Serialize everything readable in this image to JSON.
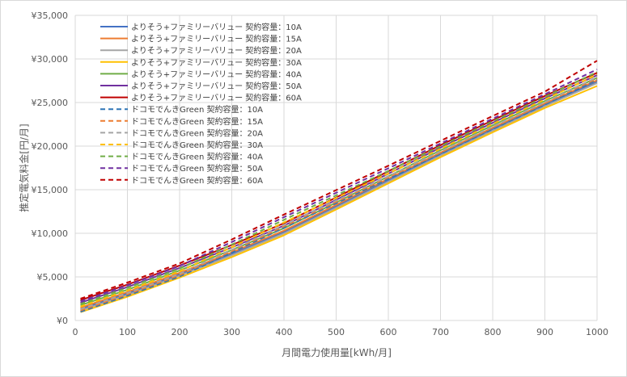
{
  "chart_data": {
    "type": "line",
    "title": "",
    "xlabel": "月間電力使用量[kWh/月]",
    "ylabel": "推定電気料金[円/月]",
    "xlim": [
      0,
      1000
    ],
    "ylim": [
      0,
      35000
    ],
    "x_ticks": [
      "0",
      "100",
      "200",
      "300",
      "400",
      "500",
      "600",
      "700",
      "800",
      "900",
      "1000"
    ],
    "y_ticks": [
      "¥0",
      "¥5,000",
      "¥10,000",
      "¥15,000",
      "¥20,000",
      "¥25,000",
      "¥30,000",
      "¥35,000"
    ],
    "grid": true,
    "legend_position": "top-left",
    "x": [
      10,
      100,
      200,
      300,
      400,
      500,
      600,
      700,
      800,
      900,
      1000
    ],
    "series": [
      {
        "name": "よりそう+ファミリーバリュー 契約容量：10A",
        "color": "#4472c4",
        "dash": false,
        "values": [
          1320,
          3100,
          5300,
          7650,
          10150,
          13100,
          16100,
          19100,
          21950,
          24750,
          27400
        ]
      },
      {
        "name": "よりそう+ファミリーバリュー 契約容量：15A",
        "color": "#ed7d31",
        "dash": false,
        "values": [
          1480,
          3260,
          5460,
          7810,
          10310,
          13260,
          16260,
          19260,
          22110,
          24910,
          27560
        ]
      },
      {
        "name": "よりそう+ファミリーバリュー 契約容量：20A",
        "color": "#a5a5a5",
        "dash": false,
        "values": [
          1150,
          2930,
          5130,
          7480,
          9980,
          12930,
          15930,
          18930,
          21780,
          24580,
          27230
        ]
      },
      {
        "name": "よりそう+ファミリーバリュー 契約容量：30A",
        "color": "#ffc000",
        "dash": false,
        "values": [
          950,
          2730,
          4930,
          7280,
          9780,
          12730,
          15730,
          18730,
          21580,
          24380,
          26900
        ]
      },
      {
        "name": "よりそう+ファミリーバリュー 契約容量：40A",
        "color": "#70ad47",
        "dash": false,
        "values": [
          1750,
          3530,
          5730,
          8080,
          10580,
          13530,
          16530,
          19530,
          22380,
          25180,
          27830
        ]
      },
      {
        "name": "よりそう+ファミリーバリュー 契約容量：50A",
        "color": "#7030a0",
        "dash": false,
        "values": [
          2050,
          3830,
          6030,
          8380,
          10880,
          13830,
          16830,
          19830,
          22680,
          25480,
          28130
        ]
      },
      {
        "name": "よりそう+ファミリーバリュー 契約容量：60A",
        "color": "#c00000",
        "dash": false,
        "values": [
          2330,
          4110,
          6310,
          8660,
          11160,
          14110,
          17110,
          20110,
          22960,
          25760,
          28410
        ]
      },
      {
        "name": "ドコモでんきGreen 契約容量：10A",
        "color": "#2e75b6",
        "dash": true,
        "values": [
          1000,
          2850,
          5050,
          7800,
          10650,
          13450,
          16250,
          19100,
          21950,
          24750,
          27600
        ]
      },
      {
        "name": "ドコモでんきGreen 契約容量：15A",
        "color": "#ed7d31",
        "dash": true,
        "values": [
          1150,
          3000,
          5200,
          7950,
          10800,
          13600,
          16400,
          19250,
          22100,
          24900,
          27750
        ]
      },
      {
        "name": "ドコモでんきGreen 契約容量：20A",
        "color": "#a5a5a5",
        "dash": true,
        "values": [
          1300,
          3150,
          5350,
          8100,
          10950,
          13750,
          16550,
          19400,
          22250,
          25050,
          27900
        ]
      },
      {
        "name": "ドコモでんきGreen 契約容量：30A",
        "color": "#ffc000",
        "dash": true,
        "values": [
          1600,
          3450,
          5650,
          8400,
          11250,
          14050,
          16850,
          19700,
          22550,
          25350,
          28200
        ]
      },
      {
        "name": "ドコモでんきGreen 契約容量：40A",
        "color": "#70ad47",
        "dash": true,
        "values": [
          1900,
          3750,
          5950,
          8700,
          11550,
          14350,
          17150,
          20000,
          22850,
          25650,
          28500
        ]
      },
      {
        "name": "ドコモでんきGreen 契約容量：50A",
        "color": "#7030a0",
        "dash": true,
        "values": [
          2200,
          4050,
          6250,
          9000,
          11850,
          14650,
          17450,
          20300,
          23150,
          25950,
          28800
        ]
      },
      {
        "name": "ドコモでんきGreen 契約容量：60A",
        "color": "#c00000",
        "dash": true,
        "values": [
          2500,
          4350,
          6550,
          9300,
          12150,
          14950,
          17750,
          20600,
          23450,
          26250,
          29800
        ]
      }
    ]
  }
}
